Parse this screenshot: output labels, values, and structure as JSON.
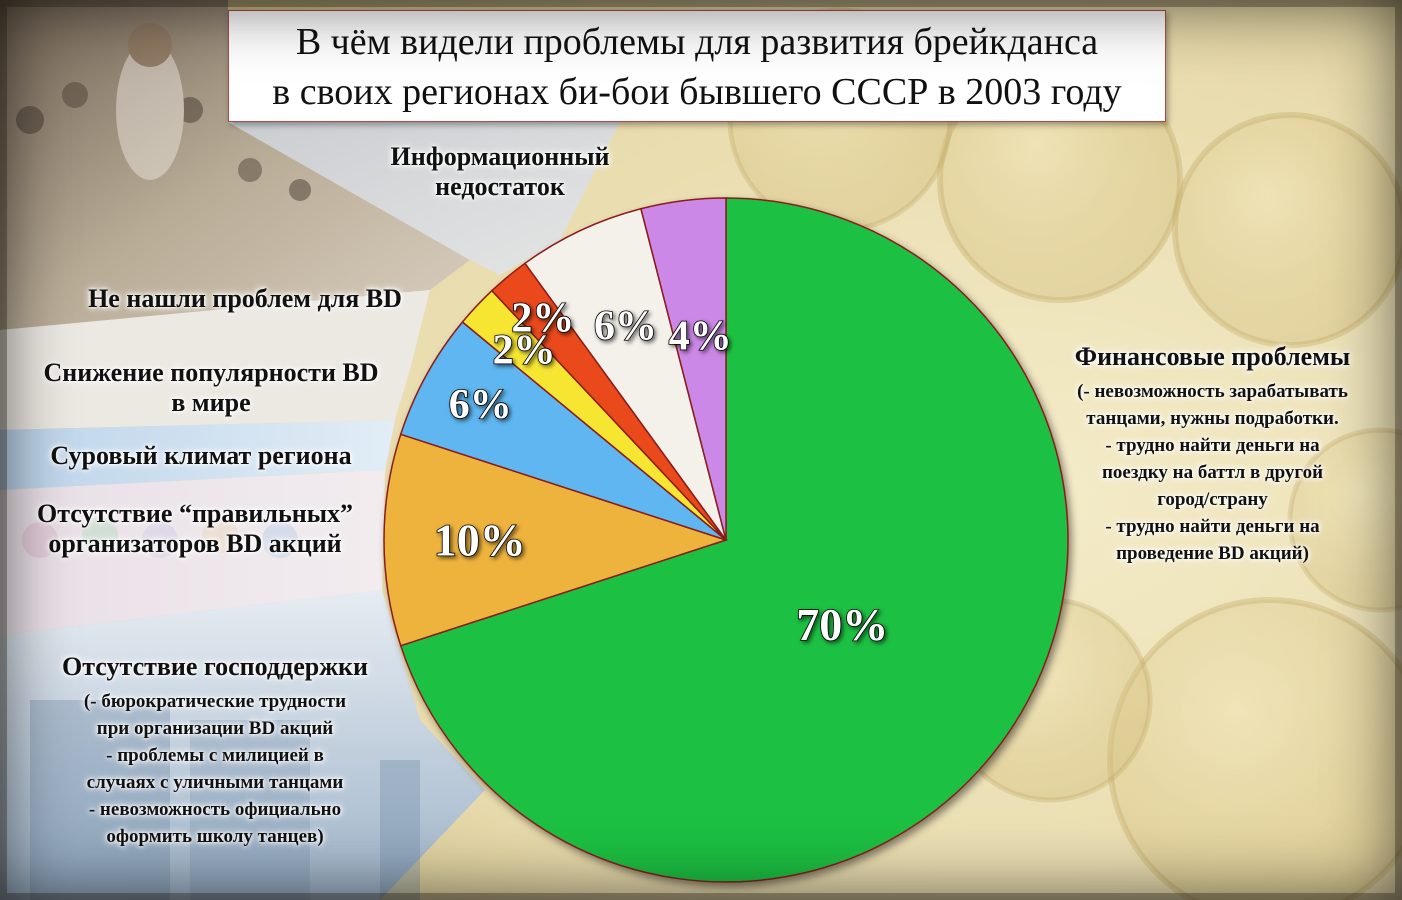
{
  "title": {
    "line1": "В чём видели проблемы для развития брейкданса",
    "line2": "в своих регионах би-бои бывшего СССР в 2003 году"
  },
  "colors": {
    "finance": "#1dc042",
    "govsupport": "#eeb33c",
    "organizers": "#5fb6f0",
    "climate": "#f6e631",
    "popularity": "#ea4a1e",
    "noproblem": "#f4f1ea",
    "info": "#cc88e6",
    "slice_border": "#8b1a1a"
  },
  "labels": {
    "info": {
      "line1": "Информационный",
      "line2": "недостаток"
    },
    "noproblem": {
      "line1": "Не нашли проблем для BD"
    },
    "popularity": {
      "line1": "Снижение популярности BD",
      "line2": "в мире"
    },
    "climate": {
      "line1": "Суровый климат региона"
    },
    "organizers": {
      "line1": "Отсутствие “правильных”",
      "line2": "организаторов BD акций"
    },
    "govsupport": {
      "line1": "Отсутствие господдержки",
      "sub": [
        "(- бюрократические трудности",
        "при организации BD акций",
        "- проблемы с милицией в",
        "случаях с уличными танцами",
        "- невозможность официально",
        "оформить школу танцев)"
      ]
    },
    "finance": {
      "line1": "Финансовые проблемы",
      "sub": [
        "(- невозможность зарабатывать",
        "танцами, нужны подработки.",
        "- трудно найти деньги на",
        "поездку на баттл в другой",
        "город/страну",
        "- трудно найти деньги на",
        "проведение BD акций)"
      ]
    }
  },
  "chart_data": {
    "type": "pie",
    "title": "В чём видели проблемы для развития брейкданса в своих регионах би-бои бывшего СССР в 2003 году",
    "start": "12 o'clock, clockwise",
    "slices": [
      {
        "key": "finance",
        "label": "Финансовые проблемы",
        "value": 70,
        "display": "70%"
      },
      {
        "key": "govsupport",
        "label": "Отсутствие господдержки",
        "value": 10,
        "display": "10%"
      },
      {
        "key": "organizers",
        "label": "Отсутствие “правильных” организаторов BD акций",
        "value": 6,
        "display": "6%"
      },
      {
        "key": "climate",
        "label": "Суровый климат региона",
        "value": 2,
        "display": "2%"
      },
      {
        "key": "popularity",
        "label": "Снижение популярности BD в мире",
        "value": 2,
        "display": "2%"
      },
      {
        "key": "noproblem",
        "label": "Не нашли проблем для BD",
        "value": 6,
        "display": "6%"
      },
      {
        "key": "info",
        "label": "Информационный недостаток",
        "value": 4,
        "display": "4%"
      }
    ]
  }
}
